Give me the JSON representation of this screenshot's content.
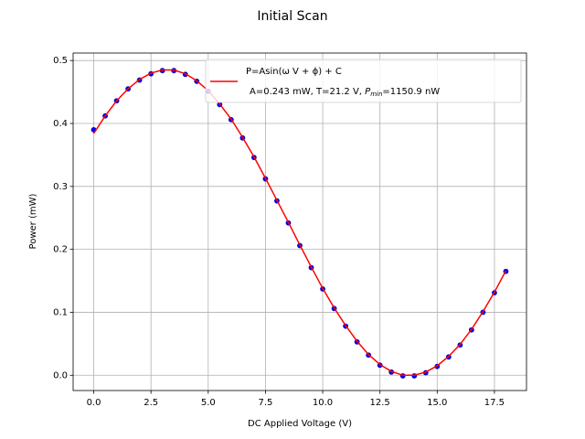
{
  "chart_data": {
    "type": "scatter",
    "title": "Initial Scan",
    "x_label": "DC Applied Voltage (V)",
    "y_label": "Power (mW)",
    "x": [
      0,
      0.5,
      1,
      1.5,
      2,
      2.5,
      3,
      3.5,
      4,
      4.5,
      5,
      5.5,
      6,
      6.5,
      7,
      7.5,
      8,
      8.5,
      9,
      9.5,
      10,
      10.5,
      11,
      11.5,
      12,
      12.5,
      13,
      13.5,
      14,
      14.5,
      15,
      15.5,
      16,
      16.5,
      17,
      17.5,
      18
    ],
    "series": [
      {
        "type": "scatter",
        "color": "#0000ff",
        "values": [
          0.39,
          0.412,
          0.436,
          0.455,
          0.469,
          0.479,
          0.484,
          0.484,
          0.478,
          0.467,
          0.451,
          0.43,
          0.406,
          0.377,
          0.346,
          0.312,
          0.277,
          0.242,
          0.206,
          0.171,
          0.137,
          0.106,
          0.078,
          0.053,
          0.032,
          0.016,
          0.005,
          -0.001,
          -0.001,
          0.004,
          0.014,
          0.029,
          0.048,
          0.072,
          0.1,
          0.131,
          0.165
        ]
      },
      {
        "type": "line",
        "name": "P=Asin(ω V + ϕ) + C",
        "color": "#ff0000",
        "values": [
          0.384,
          0.412,
          0.436,
          0.455,
          0.47,
          0.48,
          0.485,
          0.485,
          0.479,
          0.468,
          0.452,
          0.431,
          0.407,
          0.378,
          0.347,
          0.313,
          0.278,
          0.243,
          0.207,
          0.172,
          0.138,
          0.107,
          0.079,
          0.054,
          0.033,
          0.017,
          0.006,
          0.0,
          0.0,
          0.005,
          0.015,
          0.03,
          0.049,
          0.073,
          0.101,
          0.132,
          0.166
        ]
      }
    ],
    "fit_parameters": {
      "prefix": "A=0.243 mW, T=21.2 V, ",
      "symbol": "P",
      "subscript": "min",
      "suffix": "=1150.9 nW"
    },
    "xlim": [
      -0.9,
      18.9
    ],
    "ylim": [
      -0.0243,
      0.5119
    ],
    "xticks": [
      {
        "value": 0,
        "label": "0.0"
      },
      2.5,
      {
        "value": 5,
        "label": "5.0"
      },
      7.5,
      {
        "value": 10,
        "label": "10.0"
      },
      12.5,
      {
        "value": 15,
        "label": "15.0"
      },
      17.5
    ],
    "yticks": [
      {
        "value": 0,
        "label": "0.0"
      },
      0.1,
      0.2,
      0.3,
      0.4,
      0.5
    ],
    "grid": true
  }
}
